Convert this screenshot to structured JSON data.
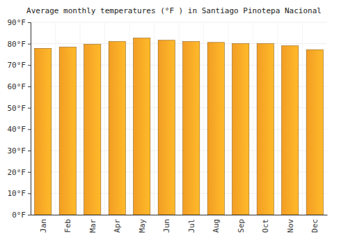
{
  "chart_data": {
    "type": "bar",
    "title": "Average monthly temperatures (°F ) in Santiago Pinotepa Nacional",
    "categories": [
      "Jan",
      "Feb",
      "Mar",
      "Apr",
      "May",
      "Jun",
      "Jul",
      "Aug",
      "Sep",
      "Oct",
      "Nov",
      "Dec"
    ],
    "values": [
      77.8,
      78.4,
      79.7,
      81.0,
      82.6,
      81.6,
      81.0,
      80.6,
      80.0,
      80.0,
      79.0,
      77.2
    ],
    "color": "#ffa726",
    "ylim": [
      0,
      90
    ],
    "yticks": [
      {
        "value": 0,
        "label": "0°F"
      },
      {
        "value": 10,
        "label": "10°F"
      },
      {
        "value": 20,
        "label": "20°F"
      },
      {
        "value": 30,
        "label": "30°F"
      },
      {
        "value": 40,
        "label": "40°F"
      },
      {
        "value": 50,
        "label": "50°F"
      },
      {
        "value": 60,
        "label": "60°F"
      },
      {
        "value": 70,
        "label": "70°F"
      },
      {
        "value": 80,
        "label": "80°F"
      },
      {
        "value": 90,
        "label": "90°F"
      }
    ],
    "grid": true
  }
}
